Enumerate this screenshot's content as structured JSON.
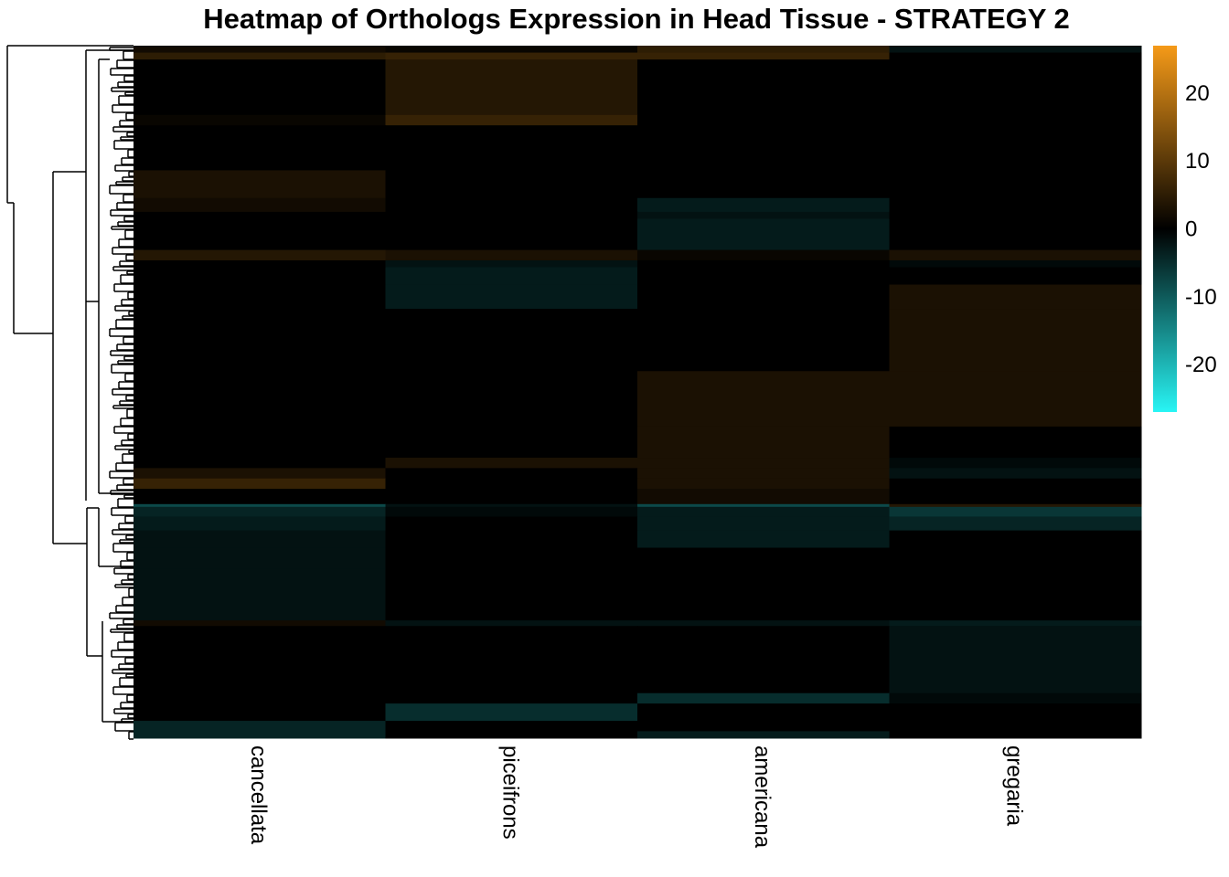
{
  "chart_data": {
    "type": "heatmap",
    "title": "Heatmap of Orthologs Expression in Head Tissue - STRATEGY 2",
    "columns": [
      "cancellata",
      "piceifrons",
      "americana",
      "gregaria"
    ],
    "color_scale": {
      "min": -27,
      "max": 27,
      "ticks": [
        20,
        10,
        0,
        -10,
        -20
      ],
      "low_color": "#28F5F5",
      "mid_color": "#000000",
      "high_color": "#F59A18"
    },
    "row_dendrogram": true,
    "row_blocks": [
      {
        "start": 0.0,
        "end": 0.01,
        "values": [
          2,
          1,
          5,
          -2
        ]
      },
      {
        "start": 0.01,
        "end": 0.02,
        "values": [
          5,
          6,
          6,
          0
        ]
      },
      {
        "start": 0.02,
        "end": 0.1,
        "values": [
          0,
          4,
          0,
          0
        ]
      },
      {
        "start": 0.1,
        "end": 0.115,
        "values": [
          1,
          6,
          0,
          0
        ]
      },
      {
        "start": 0.115,
        "end": 0.18,
        "values": [
          0,
          0,
          0,
          0
        ]
      },
      {
        "start": 0.18,
        "end": 0.22,
        "values": [
          3,
          0,
          0,
          0
        ]
      },
      {
        "start": 0.22,
        "end": 0.24,
        "values": [
          2,
          0,
          -3,
          0
        ]
      },
      {
        "start": 0.24,
        "end": 0.25,
        "values": [
          0,
          0,
          -2,
          0
        ]
      },
      {
        "start": 0.25,
        "end": 0.295,
        "values": [
          0,
          0,
          -3,
          0
        ]
      },
      {
        "start": 0.295,
        "end": 0.31,
        "values": [
          4,
          3,
          1,
          3
        ]
      },
      {
        "start": 0.31,
        "end": 0.32,
        "values": [
          0,
          -2,
          0,
          -1
        ]
      },
      {
        "start": 0.32,
        "end": 0.345,
        "values": [
          0,
          -3,
          0,
          0
        ]
      },
      {
        "start": 0.345,
        "end": 0.38,
        "values": [
          0,
          -3,
          0,
          3
        ]
      },
      {
        "start": 0.38,
        "end": 0.47,
        "values": [
          0,
          0,
          0,
          3
        ]
      },
      {
        "start": 0.47,
        "end": 0.55,
        "values": [
          0,
          0,
          3,
          3
        ]
      },
      {
        "start": 0.55,
        "end": 0.595,
        "values": [
          0,
          0,
          3,
          0
        ]
      },
      {
        "start": 0.595,
        "end": 0.61,
        "values": [
          0,
          3,
          3,
          -1
        ]
      },
      {
        "start": 0.61,
        "end": 0.625,
        "values": [
          3,
          0,
          3,
          -2
        ]
      },
      {
        "start": 0.625,
        "end": 0.64,
        "values": [
          6,
          0,
          3,
          0
        ]
      },
      {
        "start": 0.64,
        "end": 0.662,
        "values": [
          0,
          0,
          2,
          0
        ]
      },
      {
        "start": 0.662,
        "end": 0.666,
        "values": [
          -8,
          -2,
          -8,
          4
        ]
      },
      {
        "start": 0.666,
        "end": 0.68,
        "values": [
          -4,
          -1,
          -3,
          -6
        ]
      },
      {
        "start": 0.68,
        "end": 0.7,
        "values": [
          -3,
          0,
          -3,
          -4
        ]
      },
      {
        "start": 0.7,
        "end": 0.725,
        "values": [
          -2,
          0,
          -3,
          0
        ]
      },
      {
        "start": 0.725,
        "end": 0.755,
        "values": [
          -2,
          0,
          0,
          0
        ]
      },
      {
        "start": 0.755,
        "end": 0.83,
        "values": [
          -2,
          0,
          0,
          0
        ]
      },
      {
        "start": 0.83,
        "end": 0.838,
        "values": [
          2,
          -2,
          -2,
          -3
        ]
      },
      {
        "start": 0.838,
        "end": 0.935,
        "values": [
          0,
          0,
          0,
          -2
        ]
      },
      {
        "start": 0.935,
        "end": 0.95,
        "values": [
          0,
          0,
          -5,
          -1
        ]
      },
      {
        "start": 0.95,
        "end": 0.975,
        "values": [
          0,
          -5,
          0,
          0
        ]
      },
      {
        "start": 0.975,
        "end": 0.99,
        "values": [
          -4,
          0,
          0,
          0
        ]
      },
      {
        "start": 0.99,
        "end": 1.0,
        "values": [
          -4,
          0,
          -3,
          0
        ]
      }
    ]
  }
}
